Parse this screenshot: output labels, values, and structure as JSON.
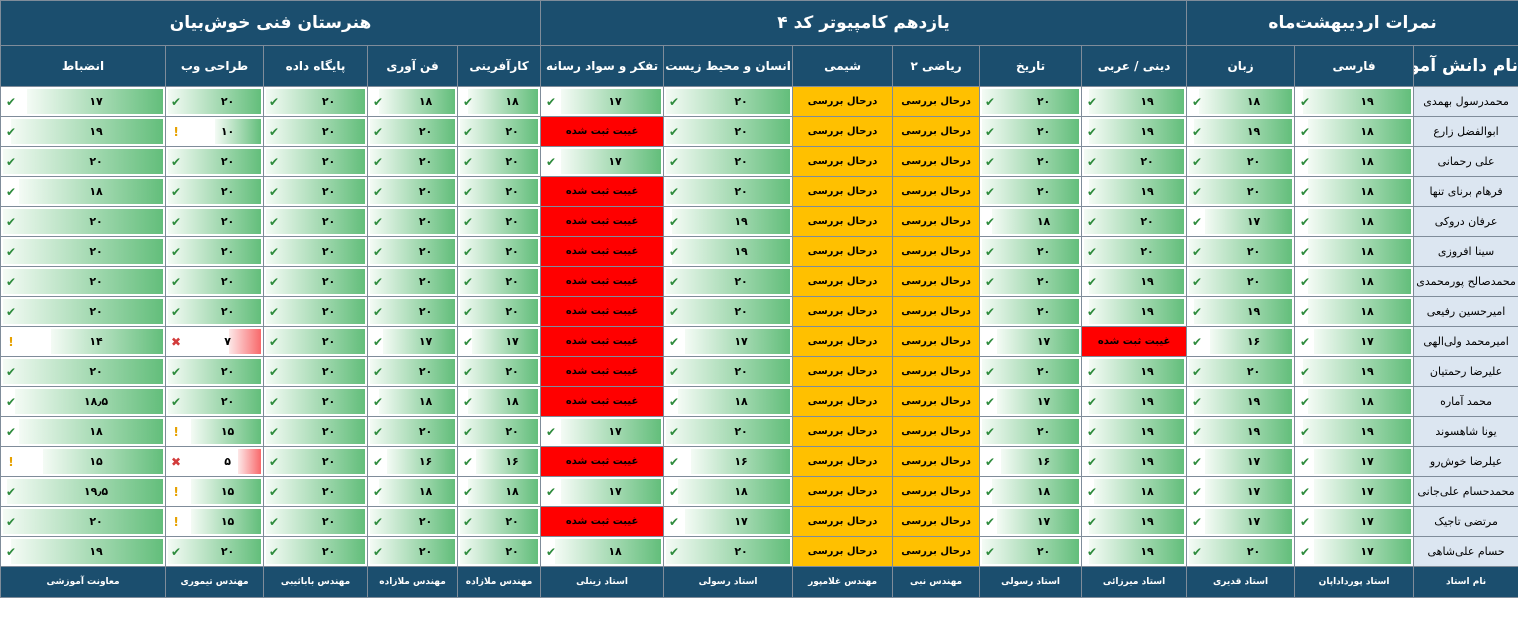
{
  "banner": {
    "school": "هنرستان فنی خوش‌بیان",
    "class": "یازدهم کامپیوتر کد ۴",
    "period": "نمرات اردیبهشت‌ماه"
  },
  "name_header": "نام دانش آموز",
  "teacher_label": "نام استاد",
  "colors": {
    "header_bg": "#1b4e6e",
    "name_bg": "#dce6f1",
    "pending_bg": "#ffc000",
    "absent_bg": "#ff0000",
    "good_bar": "#63be7b",
    "low_bar": "#f8696b"
  },
  "subjects": [
    {
      "name": "فارسی",
      "teacher": "استاد پورداداپان"
    },
    {
      "name": "زبان",
      "teacher": "استاد قدیری"
    },
    {
      "name": "دینی / عربی",
      "teacher": "استاد میرزائی"
    },
    {
      "name": "تاریخ",
      "teacher": "استاد رسولی"
    },
    {
      "name": "ریاضی ۲",
      "teacher": "مهندس نبی"
    },
    {
      "name": "شیمی",
      "teacher": "مهندس غلامپور"
    },
    {
      "name": "انسان و محیط زیست",
      "teacher": "استاد رسولی"
    },
    {
      "name": "تفکر و سواد رسانه",
      "teacher": "استاد زینلی"
    },
    {
      "name": "کارآفرینی",
      "teacher": "مهندس ملازاده"
    },
    {
      "name": "فن آوری",
      "teacher": "مهندس ملازاده"
    },
    {
      "name": "پایگاه داده",
      "teacher": "مهندس باباثیبی"
    },
    {
      "name": "طراحی وب",
      "teacher": "مهندس تیموری"
    },
    {
      "name": "انضباط",
      "teacher": "معاونت آموزشی"
    }
  ],
  "students": [
    {
      "name": "محمدرسول بهمدی",
      "grades": [
        "۱۹",
        "۱۸",
        "۱۹",
        "۲۰",
        "P",
        "P",
        "۲۰",
        "۱۷",
        "۱۸",
        "۱۸",
        "۲۰",
        "۲۰",
        "۱۷"
      ]
    },
    {
      "name": "ابوالفضل زارع",
      "grades": [
        "۱۸",
        "۱۹",
        "۱۹",
        "۲۰",
        "P",
        "P",
        "۲۰",
        "A",
        "۲۰",
        "۲۰",
        "۲۰",
        "۱۰",
        "۱۹"
      ]
    },
    {
      "name": "علی رحمانی",
      "grades": [
        "۱۸",
        "۲۰",
        "۲۰",
        "۲۰",
        "P",
        "P",
        "۲۰",
        "۱۷",
        "۲۰",
        "۲۰",
        "۲۰",
        "۲۰",
        "۲۰"
      ]
    },
    {
      "name": "فرهام برنای تنها",
      "grades": [
        "۱۸",
        "۲۰",
        "۱۹",
        "۲۰",
        "P",
        "P",
        "۲۰",
        "A",
        "۲۰",
        "۲۰",
        "۲۰",
        "۲۰",
        "۱۸"
      ]
    },
    {
      "name": "عرفان دروکی",
      "grades": [
        "۱۸",
        "۱۷",
        "۲۰",
        "۱۸",
        "P",
        "P",
        "۱۹",
        "A",
        "۲۰",
        "۲۰",
        "۲۰",
        "۲۰",
        "۲۰"
      ]
    },
    {
      "name": "سینا افروزی",
      "grades": [
        "۱۸",
        "۲۰",
        "۲۰",
        "۲۰",
        "P",
        "P",
        "۱۹",
        "A",
        "۲۰",
        "۲۰",
        "۲۰",
        "۲۰",
        "۲۰"
      ]
    },
    {
      "name": "محمدصالح پورمحمدی",
      "grades": [
        "۱۸",
        "۲۰",
        "۱۹",
        "۲۰",
        "P",
        "P",
        "۲۰",
        "A",
        "۲۰",
        "۲۰",
        "۲۰",
        "۲۰",
        "۲۰"
      ]
    },
    {
      "name": "امیرحسین رفیعی",
      "grades": [
        "۱۸",
        "۱۹",
        "۱۹",
        "۲۰",
        "P",
        "P",
        "۲۰",
        "A",
        "۲۰",
        "۲۰",
        "۲۰",
        "۲۰",
        "۲۰"
      ]
    },
    {
      "name": "امیرمحمد ولی‌الهی",
      "grades": [
        "۱۷",
        "۱۶",
        "A",
        "۱۷",
        "P",
        "P",
        "۱۷",
        "A",
        "۱۷",
        "۱۷",
        "۲۰",
        "۷",
        "۱۴"
      ]
    },
    {
      "name": "علیرضا رحمتیان",
      "grades": [
        "۱۹",
        "۲۰",
        "۱۹",
        "۲۰",
        "P",
        "P",
        "۲۰",
        "A",
        "۲۰",
        "۲۰",
        "۲۰",
        "۲۰",
        "۲۰"
      ]
    },
    {
      "name": "محمد آماره",
      "grades": [
        "۱۸",
        "۱۹",
        "۱۹",
        "۱۷",
        "P",
        "P",
        "۱۸",
        "A",
        "۱۸",
        "۱۸",
        "۲۰",
        "۲۰",
        "۱۸٫۵"
      ]
    },
    {
      "name": "یونا شاهسوند",
      "grades": [
        "۱۹",
        "۱۹",
        "۱۹",
        "۲۰",
        "P",
        "P",
        "۲۰",
        "۱۷",
        "۲۰",
        "۲۰",
        "۲۰",
        "۱۵",
        "۱۸"
      ]
    },
    {
      "name": "عیلرضا خوش‌رو",
      "grades": [
        "۱۷",
        "۱۷",
        "۱۹",
        "۱۶",
        "P",
        "P",
        "۱۶",
        "A",
        "۱۶",
        "۱۶",
        "۲۰",
        "۵",
        "۱۵"
      ]
    },
    {
      "name": "محمدحسام علی‌جانی",
      "grades": [
        "۱۷",
        "۱۷",
        "۱۸",
        "۱۸",
        "P",
        "P",
        "۱۸",
        "۱۷",
        "۱۸",
        "۱۸",
        "۲۰",
        "۱۵",
        "۱۹٫۵"
      ]
    },
    {
      "name": "مرتضی تاجیک",
      "grades": [
        "۱۷",
        "۱۷",
        "۱۹",
        "۱۷",
        "P",
        "P",
        "۱۷",
        "A",
        "۲۰",
        "۲۰",
        "۲۰",
        "۱۵",
        "۲۰"
      ]
    },
    {
      "name": "حسام علی‌شاهی",
      "grades": [
        "۱۷",
        "۲۰",
        "۱۹",
        "۲۰",
        "P",
        "P",
        "۲۰",
        "۱۸",
        "۲۰",
        "۲۰",
        "۲۰",
        "۲۰",
        "۱۹"
      ]
    }
  ],
  "status_labels": {
    "P": "درحال بررسی",
    "A": "غیبت ثبت شده"
  }
}
